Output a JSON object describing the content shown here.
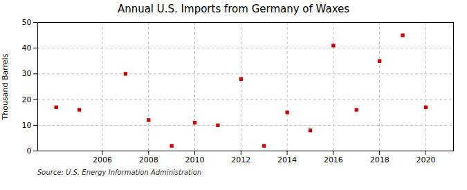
{
  "chart_data": {
    "type": "scatter",
    "title": "Annual U.S. Imports from Germany of Waxes",
    "ylabel": "Thousand Barrels",
    "source": "Source: U.S. Energy Information Administration",
    "x": [
      2004,
      2005,
      2007,
      2008,
      2009,
      2010,
      2011,
      2012,
      2013,
      2014,
      2015,
      2016,
      2017,
      2018,
      2019,
      2020
    ],
    "values": [
      17,
      16,
      30,
      12,
      2,
      11,
      10,
      28,
      2,
      15,
      8,
      41,
      16,
      35,
      45,
      17
    ],
    "color": "#cc0000",
    "marker": "square",
    "xlim": [
      2003.2,
      2021.2
    ],
    "ylim": [
      0,
      50
    ],
    "xticks": [
      2006,
      2008,
      2010,
      2012,
      2014,
      2016,
      2018,
      2020
    ],
    "yticks": [
      0,
      10,
      20,
      30,
      40,
      50
    ],
    "grid": true
  }
}
